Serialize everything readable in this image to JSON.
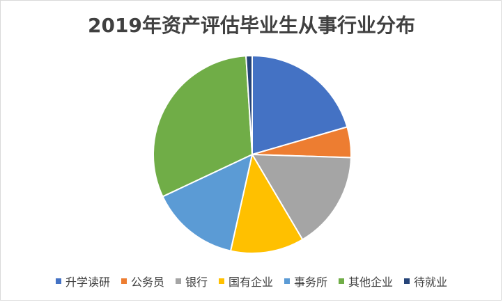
{
  "chart_data": {
    "type": "pie",
    "title": "2019年资产评估毕业生从事行业分布",
    "legend_position": "bottom",
    "categories": [
      "升学读研",
      "公务员",
      "银行",
      "国有企业",
      "事务所",
      "其他企业",
      "待就业"
    ],
    "values": [
      20.5,
      5.0,
      16.0,
      12.0,
      14.5,
      31.0,
      1.0
    ],
    "colors": [
      "#4472C4",
      "#ED7D31",
      "#A5A5A5",
      "#FFC000",
      "#5B9BD5",
      "#70AD47",
      "#264478"
    ]
  }
}
